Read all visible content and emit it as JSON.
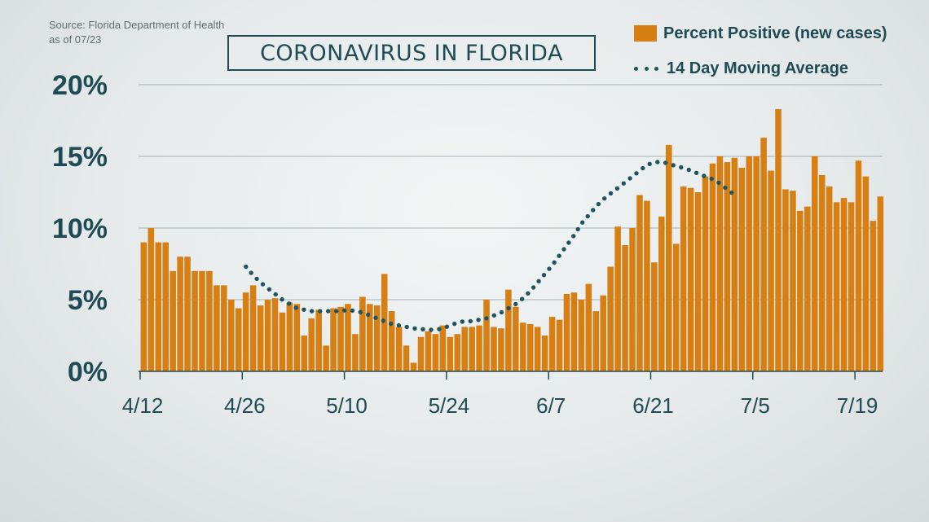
{
  "source": {
    "line1": "Source: Florida Department of Health",
    "line2": "as of 07/23"
  },
  "chart_data": {
    "type": "bar",
    "title": "CORONAVIRUS IN FLORIDA",
    "y_tick_labels": [
      "0%",
      "5%",
      "10%",
      "15%",
      "20%"
    ],
    "y_ticks": [
      0,
      5,
      10,
      15,
      20
    ],
    "ylim": [
      0,
      20
    ],
    "x_tick_labels": [
      "4/12",
      "4/26",
      "5/10",
      "5/24",
      "6/7",
      "6/21",
      "7/5",
      "7/19"
    ],
    "x_tick_day_index": [
      0,
      14,
      28,
      42,
      56,
      70,
      84,
      98
    ],
    "grid": true,
    "legend_position": "top-right",
    "colors": {
      "bars": "#d87f14",
      "average": "#1f5560",
      "text": "#1f4b55",
      "grid": "#a7b3b6"
    },
    "series": [
      {
        "name": "Percent Positive (new cases)",
        "type": "bar",
        "start_date": "4/12",
        "values": [
          9.0,
          10.0,
          9.0,
          9.0,
          7.0,
          8.0,
          8.0,
          7.0,
          7.0,
          7.0,
          6.0,
          6.0,
          5.0,
          4.4,
          5.5,
          6.0,
          4.6,
          5.0,
          5.1,
          4.1,
          4.8,
          4.7,
          2.5,
          3.7,
          4.3,
          1.8,
          4.4,
          4.5,
          4.7,
          2.6,
          5.2,
          4.7,
          4.6,
          6.8,
          4.2,
          3.1,
          1.8,
          0.6,
          2.4,
          2.8,
          2.6,
          3.2,
          2.4,
          2.6,
          3.1,
          3.1,
          3.2,
          5.0,
          3.1,
          3.0,
          5.7,
          4.5,
          3.4,
          3.3,
          3.1,
          2.5,
          3.8,
          3.6,
          5.4,
          5.5,
          5.0,
          6.1,
          4.2,
          5.3,
          7.3,
          10.1,
          8.8,
          10.0,
          12.3,
          11.9,
          7.6,
          10.8,
          15.8,
          8.9,
          12.9,
          12.8,
          12.5,
          13.6,
          14.5,
          15.0,
          14.6,
          14.9,
          14.2,
          15.0,
          15.0,
          16.3,
          14.0,
          18.3,
          12.7,
          12.6,
          11.2,
          11.5,
          15.0,
          13.7,
          12.9,
          11.8,
          12.1,
          11.8,
          14.7,
          13.6,
          10.5,
          12.2
        ]
      },
      {
        "name": "14 Day Moving Average",
        "type": "dotted-line",
        "start_index": 14,
        "values": [
          7.3,
          6.7,
          6.2,
          5.8,
          5.4,
          5.0,
          4.7,
          4.4,
          4.3,
          4.2,
          4.2,
          4.2,
          4.2,
          4.2,
          4.3,
          4.2,
          4.1,
          3.9,
          3.7,
          3.5,
          3.3,
          3.2,
          3.1,
          3.0,
          2.95,
          2.9,
          2.9,
          3.0,
          3.2,
          3.4,
          3.5,
          3.5,
          3.6,
          3.7,
          3.9,
          4.1,
          4.4,
          4.7,
          5.1,
          5.6,
          6.2,
          6.8,
          7.4,
          8.1,
          8.8,
          9.5,
          10.3,
          10.9,
          11.5,
          12.0,
          12.4,
          12.8,
          13.2,
          13.6,
          14.0,
          14.4,
          14.6,
          14.6,
          14.5,
          14.3,
          14.2,
          14.0,
          13.8,
          13.6,
          13.4,
          13.1,
          12.7,
          12.3
        ]
      }
    ]
  }
}
